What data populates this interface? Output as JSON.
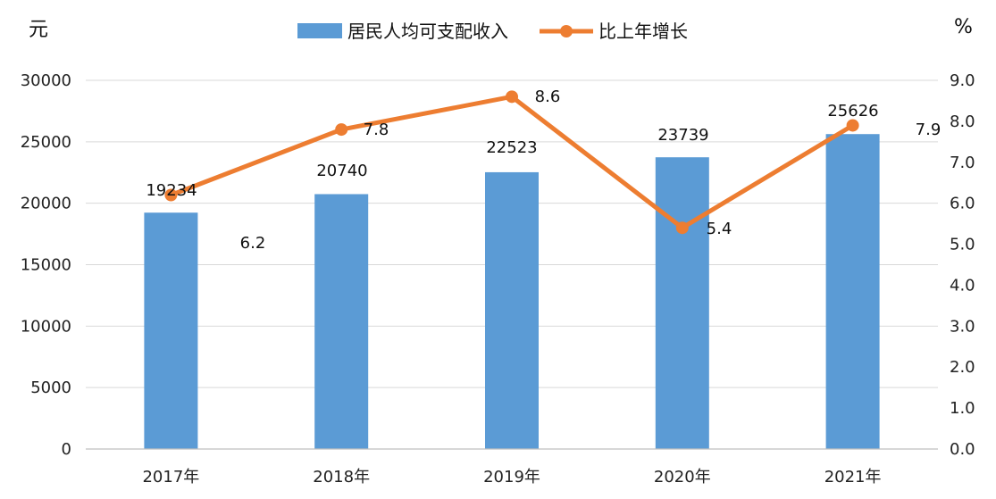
{
  "chart_data": {
    "type": "bar",
    "categories": [
      "2017年",
      "2018年",
      "2019年",
      "2020年",
      "2021年"
    ],
    "series": [
      {
        "name": "居民人均可支配收入",
        "type": "bar",
        "axis": "left",
        "values": [
          19234,
          20740,
          22523,
          23739,
          25626
        ],
        "color": "#5b9bd5"
      },
      {
        "name": "比上年增长",
        "type": "line",
        "axis": "right",
        "values": [
          6.2,
          7.8,
          8.6,
          5.4,
          7.9
        ],
        "color": "#ed7d31"
      }
    ],
    "y_left": {
      "unit": "元",
      "ylim": [
        0,
        30000
      ],
      "ticks": [
        "0",
        "5000",
        "10000",
        "15000",
        "20000",
        "25000",
        "30000"
      ]
    },
    "y_right": {
      "unit": "%",
      "ylim": [
        0,
        9
      ],
      "ticks": [
        "0.0",
        "1.0",
        "2.0",
        "3.0",
        "4.0",
        "5.0",
        "6.0",
        "7.0",
        "8.0",
        "9.0"
      ]
    },
    "bar_labels": [
      "19234",
      "20740",
      "22523",
      "23739",
      "25626"
    ],
    "line_labels": [
      "6.2",
      "7.8",
      "8.6",
      "5.4",
      "7.9"
    ],
    "legend": "top-center",
    "grid": true
  }
}
